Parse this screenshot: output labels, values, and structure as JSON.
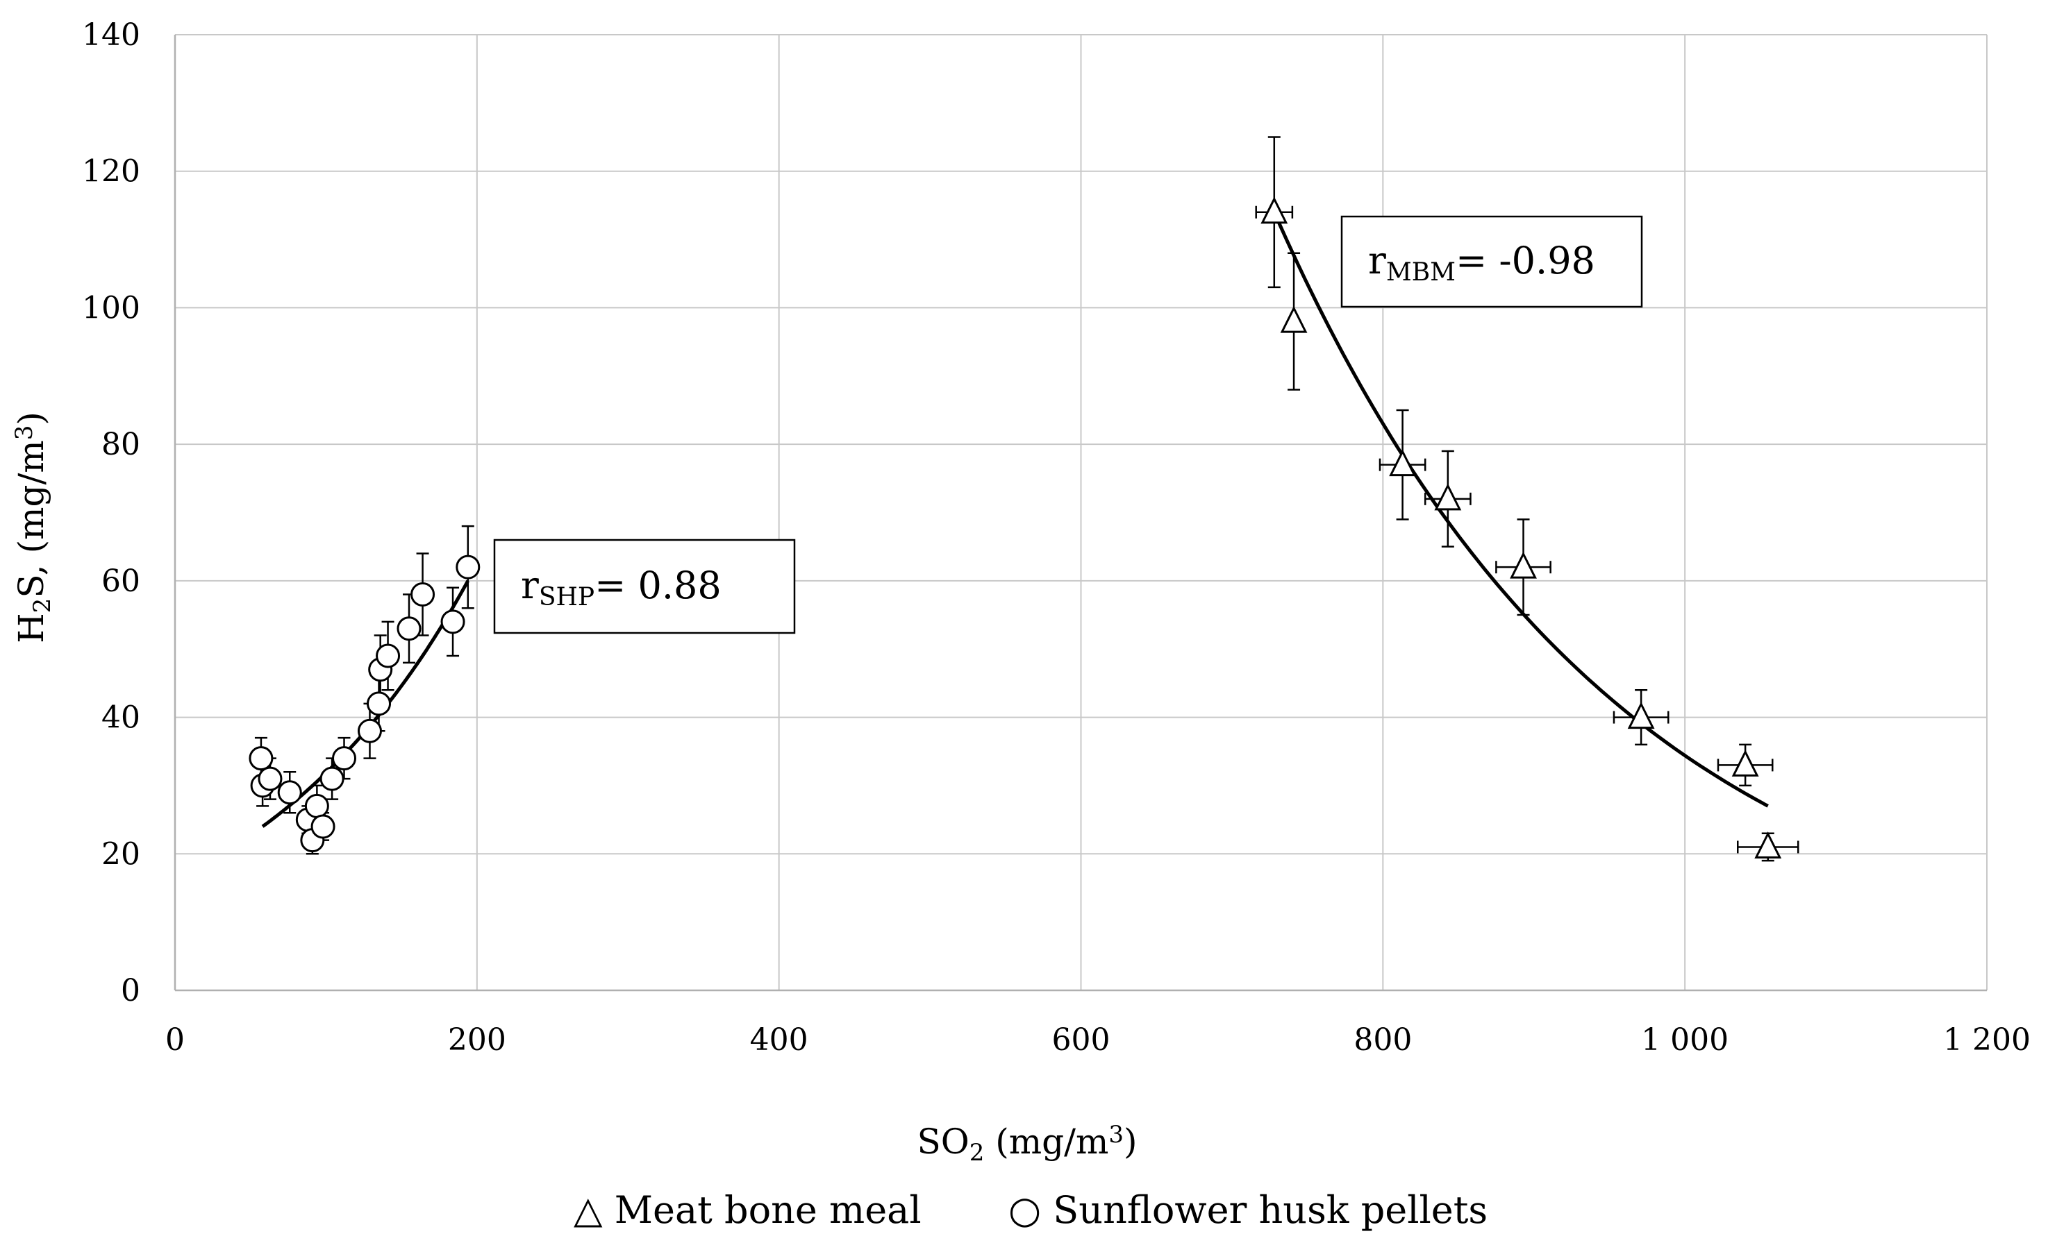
{
  "chart_data": {
    "type": "scatter",
    "title": "",
    "xlabel": {
      "main": "SO",
      "sub": "2",
      "rest": " (mg/m",
      "sup": "3",
      "end": ")"
    },
    "ylabel": {
      "main": "H",
      "sub": "2",
      "rest": "S, (mg/m",
      "sup": "3",
      "end": ")"
    },
    "xlim": [
      0,
      1200
    ],
    "ylim": [
      0,
      140
    ],
    "x_ticks": [
      0,
      200,
      400,
      600,
      800,
      1000,
      1200
    ],
    "x_tick_labels": [
      "0",
      "200",
      "400",
      "600",
      "800",
      "1 000",
      "1 200"
    ],
    "y_ticks": [
      0,
      20,
      40,
      60,
      80,
      100,
      120,
      140
    ],
    "y_tick_labels": [
      "0",
      "20",
      "40",
      "60",
      "80",
      "100",
      "120",
      "140"
    ],
    "grid": true,
    "legend_position": "bottom",
    "series": [
      {
        "name": "Meat bone meal",
        "marker": "triangle",
        "points": [
          {
            "x": 728,
            "y": 114,
            "ey": 11,
            "ex": 12
          },
          {
            "x": 741,
            "y": 98,
            "ey": 10,
            "ex": 0
          },
          {
            "x": 813,
            "y": 77,
            "ey": 8,
            "ex": 15
          },
          {
            "x": 843,
            "y": 72,
            "ey": 7,
            "ex": 15
          },
          {
            "x": 893,
            "y": 62,
            "ey": 7,
            "ex": 18
          },
          {
            "x": 971,
            "y": 40,
            "ey": 4,
            "ex": 18
          },
          {
            "x": 1040,
            "y": 33,
            "ey": 3,
            "ex": 18
          },
          {
            "x": 1055,
            "y": 21,
            "ey": 2,
            "ex": 20
          }
        ],
        "trendline": {
          "x_start": 728,
          "x_end": 1055,
          "y_start": 114,
          "y_end": 27
        }
      },
      {
        "name": "Sunflower husk pellets",
        "marker": "circle",
        "points": [
          {
            "x": 57,
            "y": 34,
            "ey": 3,
            "ex": 0
          },
          {
            "x": 58,
            "y": 30,
            "ey": 3,
            "ex": 0
          },
          {
            "x": 63,
            "y": 31,
            "ey": 3,
            "ex": 0
          },
          {
            "x": 76,
            "y": 29,
            "ey": 3,
            "ex": 0
          },
          {
            "x": 88,
            "y": 25,
            "ey": 2,
            "ex": 0
          },
          {
            "x": 91,
            "y": 22,
            "ey": 2,
            "ex": 0
          },
          {
            "x": 94,
            "y": 27,
            "ey": 3,
            "ex": 0
          },
          {
            "x": 98,
            "y": 24,
            "ey": 2,
            "ex": 0
          },
          {
            "x": 104,
            "y": 31,
            "ey": 3,
            "ex": 0
          },
          {
            "x": 112,
            "y": 34,
            "ey": 3,
            "ex": 0
          },
          {
            "x": 129,
            "y": 38,
            "ey": 4,
            "ex": 0
          },
          {
            "x": 135,
            "y": 42,
            "ey": 4,
            "ex": 0
          },
          {
            "x": 136,
            "y": 47,
            "ey": 5,
            "ex": 0
          },
          {
            "x": 141,
            "y": 49,
            "ey": 5,
            "ex": 0
          },
          {
            "x": 155,
            "y": 53,
            "ey": 5,
            "ex": 0
          },
          {
            "x": 164,
            "y": 58,
            "ey": 6,
            "ex": 0
          },
          {
            "x": 184,
            "y": 54,
            "ey": 5,
            "ex": 0
          },
          {
            "x": 194,
            "y": 62,
            "ey": 6,
            "ex": 0
          }
        ],
        "trendline": {
          "x_start": 58,
          "x_end": 194,
          "y_start": 24,
          "y_end": 60
        }
      }
    ],
    "annotations": [
      {
        "id": "shp",
        "main": "r",
        "sub": "SHP",
        "rest": "= 0.88"
      },
      {
        "id": "mbm",
        "main": "r",
        "sub": "MBM",
        "rest": "=  -0.98"
      }
    ]
  },
  "legend": {
    "triangle_symbol": "△",
    "circle_symbol": "○",
    "mbm_label": "Meat bone meal",
    "shp_label": "Sunflower husk pellets"
  }
}
